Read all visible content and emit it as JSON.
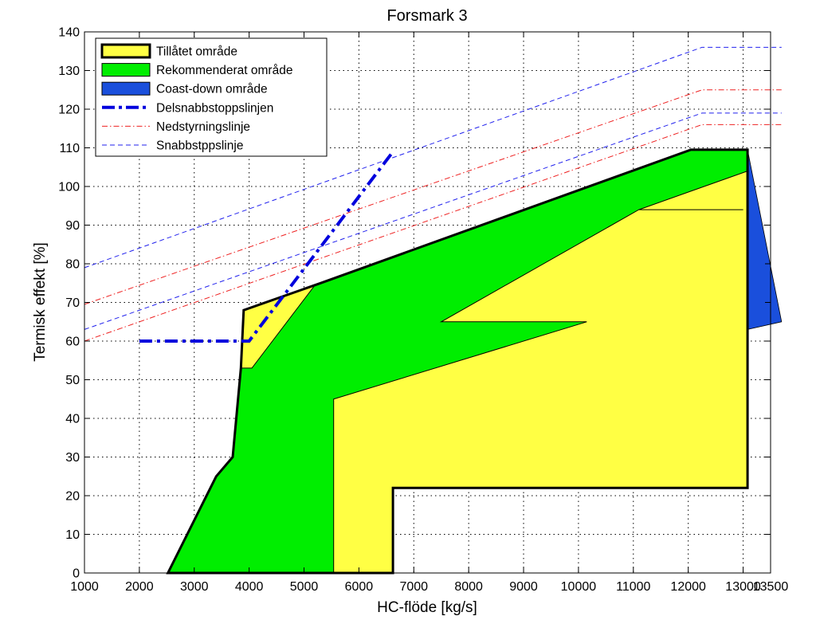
{
  "chart_data": {
    "type": "area",
    "title": "Forsmark 3",
    "xlabel": "HC-flöde [kg/s]",
    "ylabel": "Termisk effekt [%]",
    "xlim": [
      1000,
      13500
    ],
    "ylim": [
      0,
      140
    ],
    "xticks": [
      1000,
      2000,
      3000,
      4000,
      5000,
      6000,
      7000,
      8000,
      9000,
      10000,
      11000,
      12000,
      13000,
      13500
    ],
    "yticks": [
      0,
      10,
      20,
      30,
      40,
      50,
      60,
      70,
      80,
      90,
      100,
      110,
      120,
      130,
      140
    ],
    "grid": true,
    "legend_position": "top-left",
    "colors": {
      "allowed_fill": "#ffff44",
      "recommended_fill": "#00ee00",
      "coastdown_fill": "#1a4fdc",
      "partial_scram": "#0000dd",
      "rundown": "#ee2222",
      "scram": "#2222ee"
    },
    "series": [
      {
        "name": "Tillåtet område",
        "kind": "polygon",
        "x": [
          2520,
          3400,
          3700,
          3850,
          3900,
          5300,
          12050,
          13080,
          13080,
          6620,
          6620,
          5540,
          5540,
          2520
        ],
        "y": [
          0,
          25,
          30,
          53,
          68,
          75,
          109.5,
          109.5,
          22,
          22,
          0,
          0,
          0,
          0
        ]
      },
      {
        "name": "Rekommenderat område",
        "kind": "polygon",
        "x": [
          2520,
          3400,
          3700,
          3850,
          3850,
          4050,
          5200,
          5300,
          12050,
          13080,
          13080,
          11100,
          13000,
          11100,
          7500,
          10150,
          5540,
          5540,
          2520
        ],
        "y": [
          0,
          25,
          30,
          53,
          53,
          53,
          74.5,
          75,
          109.5,
          109.5,
          104,
          94,
          94,
          94,
          65,
          65,
          45,
          0,
          0
        ]
      },
      {
        "name": "Coast-down område",
        "kind": "polygon",
        "x": [
          13080,
          13080,
          13700,
          13080
        ],
        "y": [
          109.5,
          63,
          65,
          109.5
        ]
      },
      {
        "name": "Delsnabbstoppslinjen",
        "kind": "line",
        "x": [
          2000,
          4000,
          6620
        ],
        "y": [
          60,
          60,
          109
        ]
      },
      {
        "name": "Nedstyrningslinje",
        "kind": "lines",
        "lines": [
          {
            "x": [
              1000,
              12250,
              13700
            ],
            "y": [
              69.5,
              125,
              125
            ]
          },
          {
            "x": [
              1000,
              12250,
              13700
            ],
            "y": [
              60,
              116,
              116
            ]
          }
        ]
      },
      {
        "name": "Snabbstppslinje",
        "kind": "lines",
        "lines": [
          {
            "x": [
              1000,
              12250,
              13700
            ],
            "y": [
              79,
              136,
              136
            ]
          },
          {
            "x": [
              1000,
              12250,
              13700
            ],
            "y": [
              63,
              119,
              119
            ]
          }
        ]
      }
    ]
  }
}
